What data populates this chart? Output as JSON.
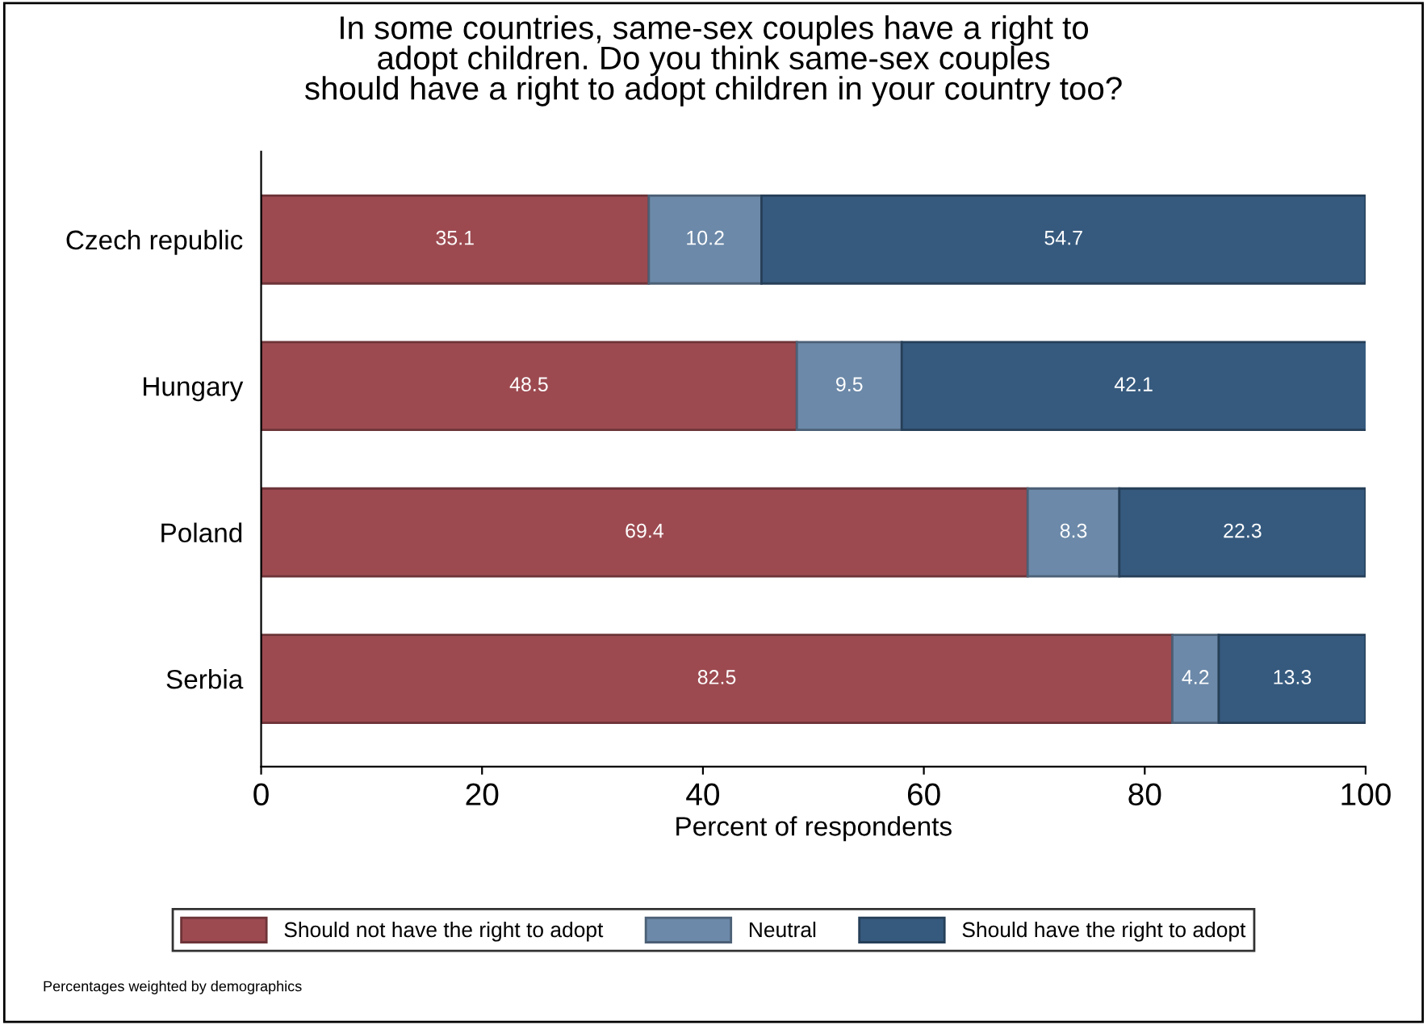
{
  "chart_data": {
    "type": "bar",
    "orientation": "horizontal",
    "stacked": true,
    "title": "In some countries, same-sex couples have a right to\nadopt children. Do you think same-sex couples\nshould have a right to adopt children in your country too?",
    "categories": [
      "Czech republic",
      "Hungary",
      "Poland",
      "Serbia"
    ],
    "series": [
      {
        "name": "Should not have the right to adopt",
        "color": "#9c4a50",
        "values": [
          35.1,
          48.5,
          69.4,
          82.5
        ]
      },
      {
        "name": "Neutral",
        "color": "#6c89a9",
        "values": [
          10.2,
          9.5,
          8.3,
          4.2
        ]
      },
      {
        "name": "Should have the right to adopt",
        "color": "#365a7e",
        "values": [
          54.7,
          42.1,
          22.3,
          13.3
        ]
      }
    ],
    "xlabel": "Percent of respondents",
    "xlim": [
      0,
      100
    ],
    "xticks": [
      0,
      20,
      40,
      60,
      80,
      100
    ],
    "data_labels": true,
    "grid": false,
    "legend": "bottom",
    "annotations": [
      "Percentages weighted by demographics"
    ]
  }
}
